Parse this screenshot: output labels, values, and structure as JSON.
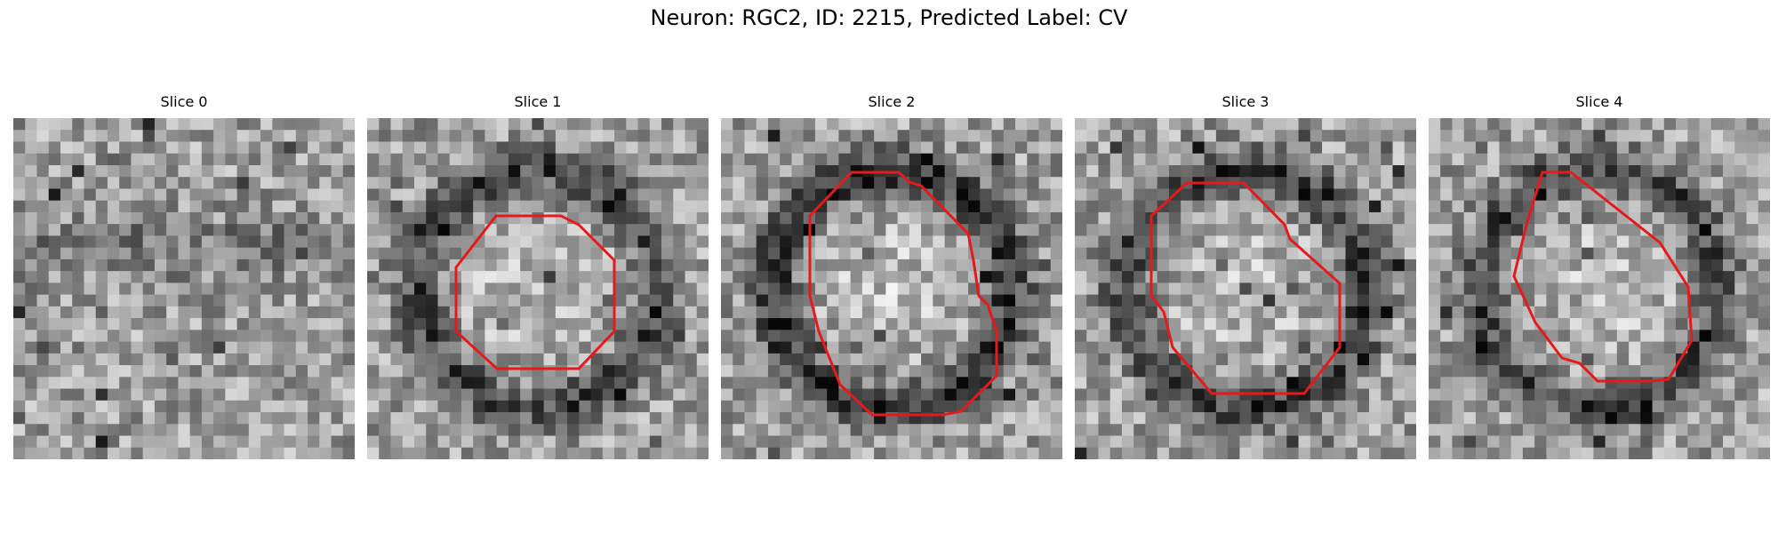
{
  "figure": {
    "title": "Neuron: RGC2, ID: 2215, Predicted Label: CV",
    "contour_color": "#e41a1c",
    "colormap": "grayscale",
    "grid_size": 29
  },
  "panels": [
    {
      "title": "Slice 0",
      "seed": 11,
      "darkness": 0.18,
      "has_contour": false
    },
    {
      "title": "Slice 1",
      "seed": 23,
      "darkness": 0.22,
      "has_contour": true
    },
    {
      "title": "Slice 2",
      "seed": 37,
      "darkness": 0.28,
      "has_contour": true
    },
    {
      "title": "Slice 3",
      "seed": 51,
      "darkness": 0.24,
      "has_contour": true
    },
    {
      "title": "Slice 4",
      "seed": 67,
      "darkness": 0.22,
      "has_contour": true
    }
  ]
}
